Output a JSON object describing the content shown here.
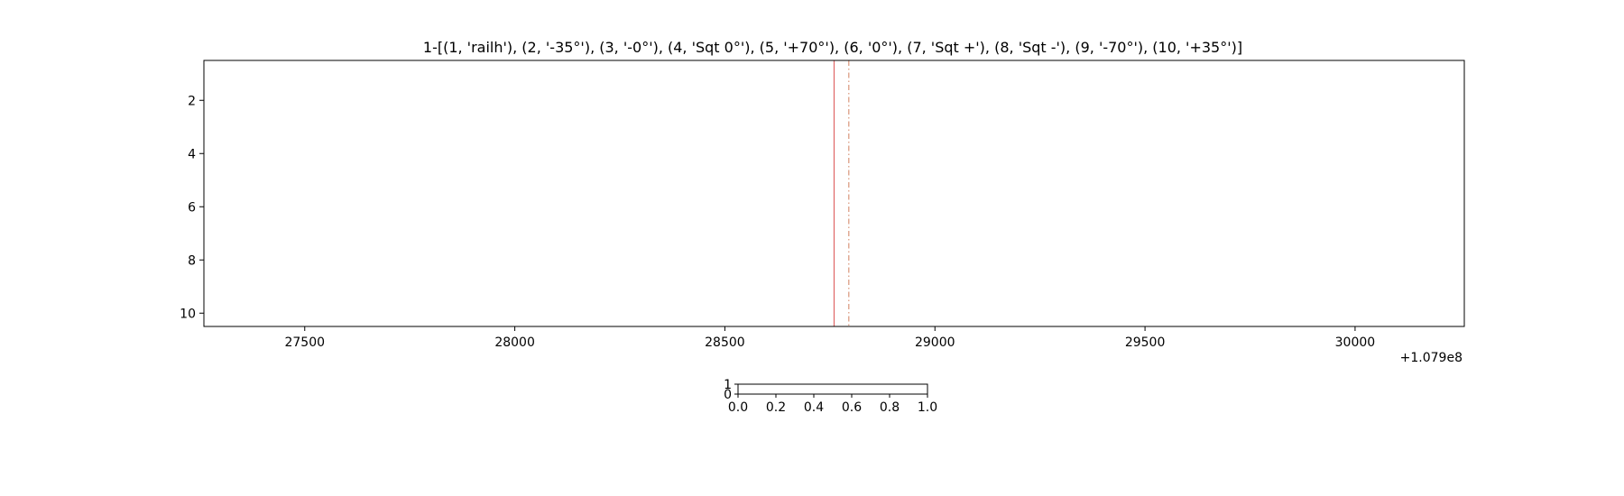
{
  "chart_data": [
    {
      "type": "line",
      "title": "1-[(1, 'railh'), (2, '-35°'), (3, '-0°'), (4, 'Sqt 0°'), (5, '+70°'), (6, '0°'), (7, 'Sqt +'), (8, 'Sqt -'), (9, '-70°'), (10, '+35°')]",
      "xlabel": "",
      "ylabel": "",
      "x_offset_label": "+1.079e8",
      "x_offset": 107900000,
      "xlim": [
        27260,
        30260
      ],
      "ylim": [
        10.5,
        0.5
      ],
      "y_inverted": true,
      "x_ticks": [
        27500,
        28000,
        28500,
        29000,
        29500,
        30000
      ],
      "x_tick_labels": [
        "27500",
        "28000",
        "28500",
        "29000",
        "29500",
        "30000"
      ],
      "y_ticks": [
        2,
        4,
        6,
        8,
        10
      ],
      "y_tick_labels": [
        "2",
        "4",
        "6",
        "8",
        "10"
      ],
      "grid": false,
      "vlines": [
        {
          "x": 28760,
          "style": "solid",
          "color": "#e06666"
        },
        {
          "x": 28795,
          "style": "dashdot",
          "color": "#d9967a"
        }
      ],
      "series": []
    },
    {
      "type": "line",
      "title": "",
      "xlim": [
        0.0,
        1.0
      ],
      "ylim": [
        0,
        1
      ],
      "x_ticks": [
        0.0,
        0.2,
        0.4,
        0.6,
        0.8,
        1.0
      ],
      "x_tick_labels": [
        "0.0",
        "0.2",
        "0.4",
        "0.6",
        "0.8",
        "1.0"
      ],
      "y_ticks": [
        0,
        1
      ],
      "y_tick_labels": [
        "0",
        "1"
      ],
      "grid": false,
      "series": []
    }
  ]
}
